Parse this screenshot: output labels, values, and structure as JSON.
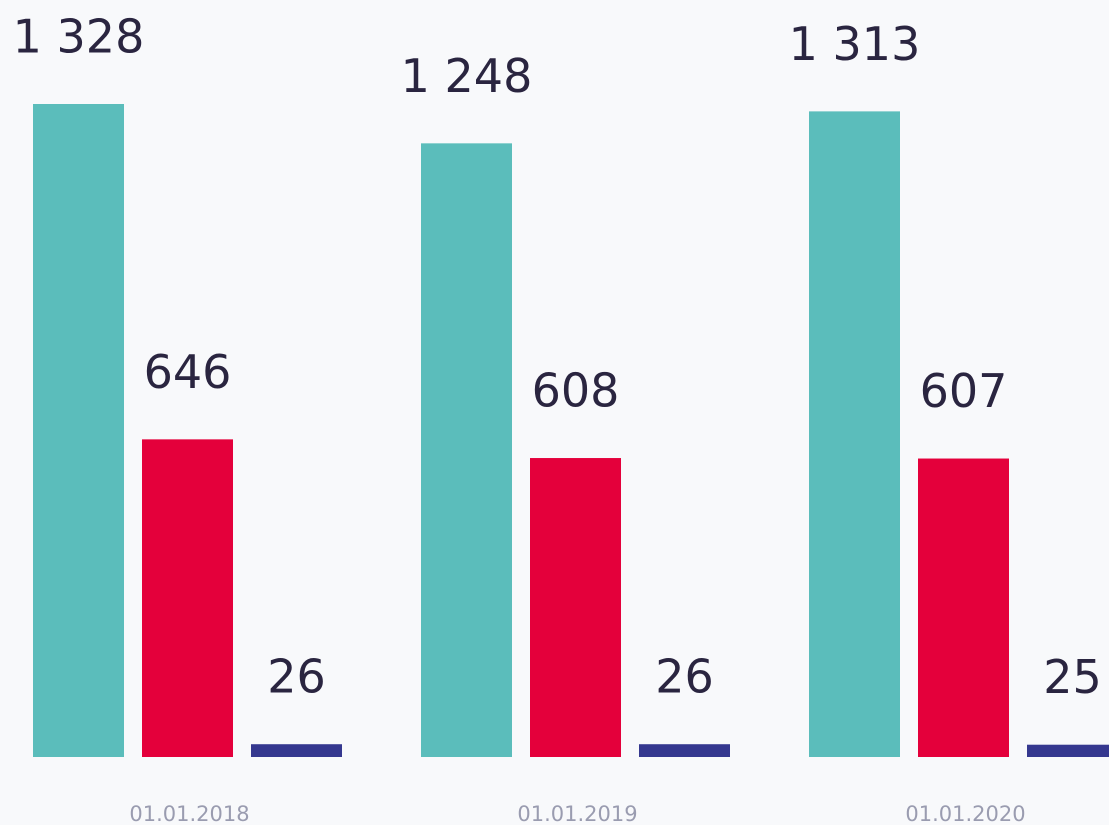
{
  "chart_data": {
    "type": "bar",
    "categories": [
      "01.01.2018",
      "01.01.2019",
      "01.01.2020"
    ],
    "series": [
      {
        "color": "#5bbdbb",
        "values": [
          1328,
          1248,
          1313
        ],
        "value_labels": [
          "1 328",
          "1 248",
          "1 313"
        ]
      },
      {
        "color": "#e4003b",
        "values": [
          646,
          608,
          607
        ]
      },
      {
        "color": "#35388f",
        "values": [
          26,
          26,
          25
        ]
      }
    ]
  }
}
